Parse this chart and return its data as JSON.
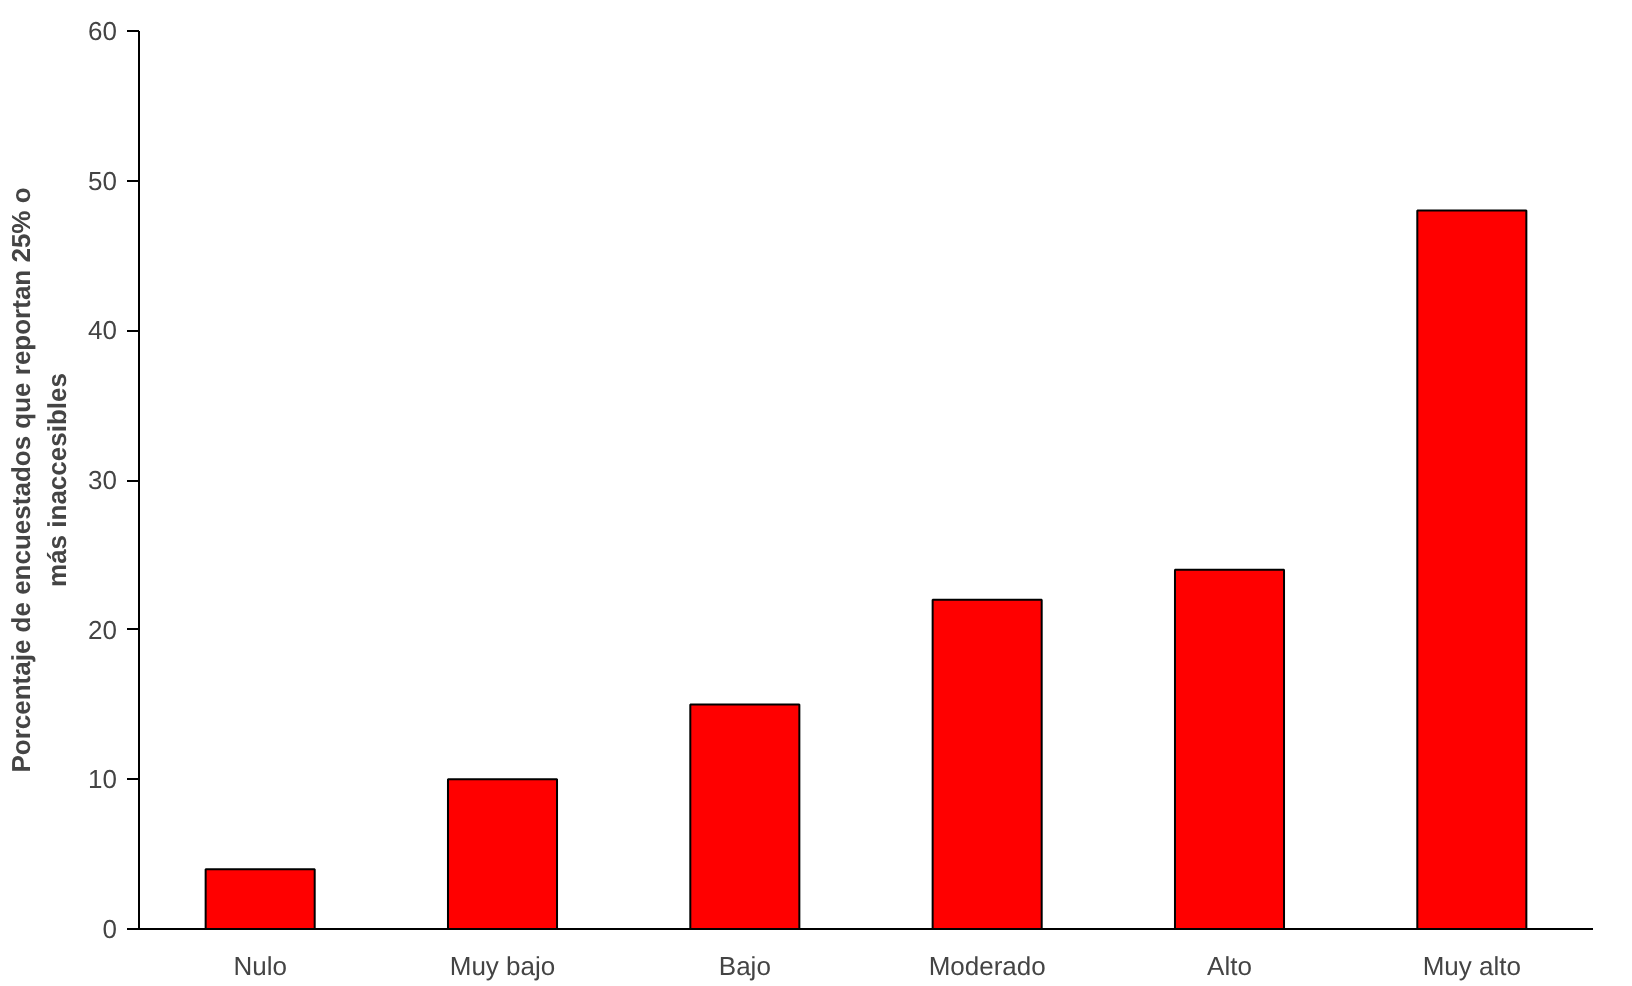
{
  "chart_data": {
    "type": "bar",
    "ylabel": "Porcentaje de encuestados que reportan 25% o más inaccesibles",
    "categories": [
      "Nulo",
      "Muy bajo",
      "Bajo",
      "Moderado",
      "Alto",
      "Muy alto"
    ],
    "values": [
      4,
      10,
      15,
      22,
      24,
      48
    ],
    "color": "#ff0000",
    "ylim": [
      0,
      60
    ],
    "yticks": [
      0,
      10,
      20,
      30,
      40,
      50,
      60
    ],
    "grid": false
  }
}
